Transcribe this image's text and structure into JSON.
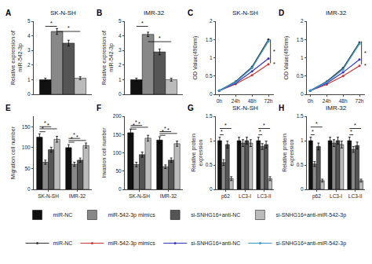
{
  "chart_data": [
    {
      "type": "bar",
      "title": "SK-N-SH",
      "ylabel": "Relative expression of\nmiR-542-3p",
      "categories": [
        null
      ],
      "series": [
        {
          "name": "miR-NC",
          "color": "#111111",
          "values": [
            1.0
          ],
          "errors": [
            0.1
          ]
        },
        {
          "name": "miR-542-3p mimics",
          "color": "#888888",
          "values": [
            4.3
          ],
          "errors": [
            0.2
          ]
        },
        {
          "name": "si-SNHG16+anti-NC",
          "color": "#555555",
          "values": [
            3.5
          ],
          "errors": [
            0.2
          ]
        },
        {
          "name": "si-SNHG16+anti-miR-542-3p",
          "color": "#bbbbbb",
          "values": [
            1.1
          ],
          "errors": [
            0.1
          ]
        }
      ],
      "ylim": [
        0,
        5
      ],
      "yticks": [
        0,
        1,
        2,
        3,
        4,
        5
      ],
      "grid": false,
      "legend": "bottom",
      "tick_labels": "y",
      "annotations": [
        {
          "text": "A"
        },
        {
          "text": "*",
          "category": 0,
          "series": [
            0,
            1
          ],
          "y": 4.65
        },
        {
          "text": "*",
          "category": 0,
          "series": [
            1,
            3
          ],
          "y": 4.3
        }
      ]
    },
    {
      "type": "bar",
      "title": "IMR-32",
      "ylabel": "Relative expression of\nmiR-542-3p",
      "categories": [
        null
      ],
      "series": [
        {
          "name": "miR-NC",
          "color": "#111111",
          "values": [
            1.0
          ],
          "errors": [
            0.1
          ]
        },
        {
          "name": "miR-542-3p mimics",
          "color": "#888888",
          "values": [
            4.1
          ],
          "errors": [
            0.15
          ]
        },
        {
          "name": "si-SNHG16+anti-NC",
          "color": "#555555",
          "values": [
            2.9
          ],
          "errors": [
            0.2
          ]
        },
        {
          "name": "si-SNHG16+anti-miR-542-3p",
          "color": "#bbbbbb",
          "values": [
            1.0
          ],
          "errors": [
            0.1
          ]
        }
      ],
      "ylim": [
        0,
        5
      ],
      "yticks": [
        0,
        1,
        2,
        3,
        4,
        5
      ],
      "grid": false,
      "legend": "bottom",
      "tick_labels": "y",
      "annotations": [
        {
          "text": "B"
        },
        {
          "text": "*",
          "category": 0,
          "series": [
            0,
            1
          ],
          "y": 4.65
        },
        {
          "text": "*",
          "category": 0,
          "series": [
            1,
            3
          ],
          "y": 3.6
        }
      ]
    },
    {
      "type": "line",
      "title": "SK-N-SH",
      "ylabel": "OD Value(490nm)",
      "x": [
        0,
        24,
        48,
        72
      ],
      "xlim": [
        -5,
        80
      ],
      "xticks": [
        {
          "value": 0,
          "label": "0h"
        },
        {
          "value": 24,
          "label": "24h"
        },
        {
          "value": 48,
          "label": "48h"
        },
        {
          "value": 72,
          "label": "72h"
        }
      ],
      "ylim": [
        0,
        2
      ],
      "yticks": [
        0,
        0.5,
        1,
        1.5,
        2
      ],
      "marker": "circle",
      "grid": false,
      "legend": "bottom",
      "series": [
        {
          "name": "miR-NC",
          "color": "#333333",
          "values": [
            0.1,
            0.35,
            0.75,
            1.5
          ]
        },
        {
          "name": "miR-542-3p mimics",
          "color": "#cc3333",
          "values": [
            0.1,
            0.28,
            0.52,
            0.82
          ]
        },
        {
          "name": "si-SNHG16+anti-NC",
          "color": "#3333cc",
          "values": [
            0.1,
            0.3,
            0.63,
            0.98
          ]
        },
        {
          "name": "si-SNHG16+anti-miR-542-3p",
          "color": "#3399cc",
          "values": [
            0.1,
            0.33,
            0.72,
            1.45
          ]
        }
      ],
      "annotations": [
        {
          "text": "C"
        },
        {
          "text": "*",
          "x": 77,
          "y": 1.17
        },
        {
          "text": "*",
          "x": 77,
          "y": 0.82
        }
      ],
      "brackets": [
        {
          "x": 75,
          "y": [
            0.85,
            1.5
          ]
        }
      ]
    },
    {
      "type": "line",
      "title": "IMR-32",
      "ylabel": "OD Value(490nm)",
      "x": [
        0,
        24,
        48,
        72
      ],
      "xlim": [
        -5,
        80
      ],
      "xticks": [
        {
          "value": 0,
          "label": "0h"
        },
        {
          "value": 24,
          "label": "24h"
        },
        {
          "value": 48,
          "label": "48h"
        },
        {
          "value": 72,
          "label": "72h"
        }
      ],
      "ylim": [
        0,
        2
      ],
      "yticks": [
        0,
        0.5,
        1,
        1.5,
        2
      ],
      "marker": "circle",
      "grid": false,
      "legend": "bottom",
      "series": [
        {
          "name": "miR-NC",
          "color": "#333333",
          "values": [
            0.1,
            0.35,
            0.72,
            1.42
          ]
        },
        {
          "name": "miR-542-3p mimics",
          "color": "#cc3333",
          "values": [
            0.1,
            0.27,
            0.5,
            0.78
          ]
        },
        {
          "name": "si-SNHG16+anti-NC",
          "color": "#3333cc",
          "values": [
            0.1,
            0.3,
            0.6,
            0.95
          ]
        },
        {
          "name": "si-SNHG16+anti-miR-542-3p",
          "color": "#3399cc",
          "values": [
            0.1,
            0.33,
            0.68,
            1.38
          ]
        }
      ],
      "annotations": [
        {
          "text": "D"
        },
        {
          "text": "*",
          "x": 77,
          "y": 1.12
        },
        {
          "text": "*",
          "x": 77,
          "y": 0.79
        }
      ],
      "brackets": [
        {
          "x": 75,
          "y": [
            0.82,
            1.45
          ]
        }
      ]
    },
    {
      "type": "bar",
      "ylabel": "Migration cell number",
      "categories": [
        "SK-N-SH",
        "IMR-32"
      ],
      "series": [
        {
          "name": "miR-NC",
          "color": "#111111",
          "values": [
            125,
            100
          ],
          "errors": [
            8,
            7
          ]
        },
        {
          "name": "miR-542-3p mimics",
          "color": "#888888",
          "values": [
            65,
            60
          ],
          "errors": [
            5,
            5
          ]
        },
        {
          "name": "si-SNHG16+anti-NC",
          "color": "#555555",
          "values": [
            95,
            70
          ],
          "errors": [
            6,
            5
          ]
        },
        {
          "name": "si-SNHG16+anti-miR-542-3p",
          "color": "#bbbbbb",
          "values": [
            120,
            105
          ],
          "errors": [
            7,
            6
          ]
        }
      ],
      "ylim": [
        0,
        175
      ],
      "yticks": [
        0,
        50,
        100,
        150
      ],
      "grid": false,
      "legend": "bottom",
      "annotations": [
        {
          "text": "E"
        },
        {
          "text": "*",
          "category": 0,
          "series": [
            0,
            1
          ],
          "y": 138
        },
        {
          "text": "*",
          "category": 0,
          "series": [
            0,
            2
          ],
          "y": 150
        },
        {
          "text": "*",
          "category": 0,
          "series": [
            0,
            3
          ],
          "y": 145
        },
        {
          "text": "*",
          "category": 1,
          "series": [
            0,
            1
          ],
          "y": 113
        },
        {
          "text": "*",
          "category": 1,
          "series": [
            0,
            2
          ],
          "y": 122
        },
        {
          "text": "*",
          "category": 1,
          "series": [
            0,
            3
          ],
          "y": 117
        }
      ]
    },
    {
      "type": "bar",
      "ylabel": "Invasion cell number",
      "categories": [
        "SK-N-SH",
        "IMR-32"
      ],
      "series": [
        {
          "name": "miR-NC",
          "color": "#111111",
          "values": [
            155,
            135
          ],
          "errors": [
            10,
            9
          ]
        },
        {
          "name": "miR-542-3p mimics",
          "color": "#888888",
          "values": [
            68,
            62
          ],
          "errors": [
            6,
            5
          ]
        },
        {
          "name": "si-SNHG16+anti-NC",
          "color": "#555555",
          "values": [
            95,
            80
          ],
          "errors": [
            7,
            6
          ]
        },
        {
          "name": "si-SNHG16+anti-miR-542-3p",
          "color": "#bbbbbb",
          "values": [
            140,
            125
          ],
          "errors": [
            8,
            7
          ]
        }
      ],
      "ylim": [
        0,
        200
      ],
      "yticks": [
        0,
        50,
        100,
        150,
        200
      ],
      "grid": false,
      "legend": "bottom",
      "annotations": [
        {
          "text": "F"
        },
        {
          "text": "*",
          "category": 0,
          "series": [
            0,
            1
          ],
          "y": 165
        },
        {
          "text": "*",
          "category": 0,
          "series": [
            0,
            2
          ],
          "y": 175
        },
        {
          "text": "*",
          "category": 0,
          "series": [
            0,
            3
          ],
          "y": 170
        },
        {
          "text": "*",
          "category": 1,
          "series": [
            0,
            1
          ],
          "y": 148
        },
        {
          "text": "*",
          "category": 1,
          "series": [
            0,
            2
          ],
          "y": 158
        },
        {
          "text": "*",
          "category": 1,
          "series": [
            0,
            3
          ],
          "y": 153
        }
      ]
    },
    {
      "type": "bar",
      "title": "SK-N-SH",
      "ylabel": "Relative protein\nexpression",
      "categories": [
        "p62",
        "LC3-I",
        "LC3-II"
      ],
      "series": [
        {
          "name": "miR-NC",
          "color": "#111111",
          "values": [
            1.0,
            1.0,
            1.0
          ],
          "errors": [
            0.07,
            0.07,
            0.07
          ]
        },
        {
          "name": "miR-542-3p mimics",
          "color": "#888888",
          "values": [
            0.55,
            0.95,
            0.88
          ],
          "errors": [
            0.06,
            0.07,
            0.06
          ]
        },
        {
          "name": "si-SNHG16+anti-NC",
          "color": "#555555",
          "values": [
            0.92,
            1.0,
            0.92
          ],
          "errors": [
            0.07,
            0.07,
            0.07
          ]
        },
        {
          "name": "si-SNHG16+anti-miR-542-3p",
          "color": "#bbbbbb",
          "values": [
            0.22,
            0.95,
            0.22
          ],
          "errors": [
            0.04,
            0.07,
            0.04
          ]
        }
      ],
      "ylim": [
        0,
        1.5
      ],
      "yticks": [
        0,
        0.5,
        1,
        1.5
      ],
      "grid": false,
      "legend": "bottom",
      "annotations": [
        {
          "text": "G"
        },
        {
          "text": "*",
          "category": 0,
          "series": [
            0,
            1
          ],
          "y": 1.12
        },
        {
          "text": "*",
          "category": 0,
          "series": [
            0,
            3
          ],
          "y": 1.25
        },
        {
          "text": "*",
          "category": 2,
          "series": [
            0,
            1
          ],
          "y": 1.12
        },
        {
          "text": "*",
          "category": 2,
          "series": [
            0,
            3
          ],
          "y": 1.25
        }
      ]
    },
    {
      "type": "bar",
      "title": "IMR-32",
      "ylabel": "Relative protein\nexpression",
      "categories": [
        "p62",
        "LC3-I",
        "LC3-II"
      ],
      "series": [
        {
          "name": "miR-NC",
          "color": "#111111",
          "values": [
            1.0,
            1.0,
            1.0
          ],
          "errors": [
            0.07,
            0.07,
            0.07
          ]
        },
        {
          "name": "miR-542-3p mimics",
          "color": "#888888",
          "values": [
            0.52,
            0.95,
            0.82
          ],
          "errors": [
            0.05,
            0.07,
            0.06
          ]
        },
        {
          "name": "si-SNHG16+anti-NC",
          "color": "#555555",
          "values": [
            0.88,
            1.0,
            0.9
          ],
          "errors": [
            0.07,
            0.07,
            0.07
          ]
        },
        {
          "name": "si-SNHG16+anti-miR-542-3p",
          "color": "#bbbbbb",
          "values": [
            0.18,
            0.92,
            0.18
          ],
          "errors": [
            0.03,
            0.07,
            0.03
          ]
        }
      ],
      "ylim": [
        0,
        1.5
      ],
      "yticks": [
        0,
        0.5,
        1,
        1.5
      ],
      "grid": false,
      "legend": "bottom",
      "annotations": [
        {
          "text": "H"
        },
        {
          "text": "*",
          "category": 0,
          "series": [
            0,
            1
          ],
          "y": 1.12
        },
        {
          "text": "*",
          "category": 0,
          "series": [
            0,
            3
          ],
          "y": 1.28
        },
        {
          "text": "*",
          "category": 2,
          "series": [
            0,
            1
          ],
          "y": 1.12
        },
        {
          "text": "*",
          "category": 2,
          "series": [
            0,
            3
          ],
          "y": 1.25
        }
      ]
    }
  ]
}
